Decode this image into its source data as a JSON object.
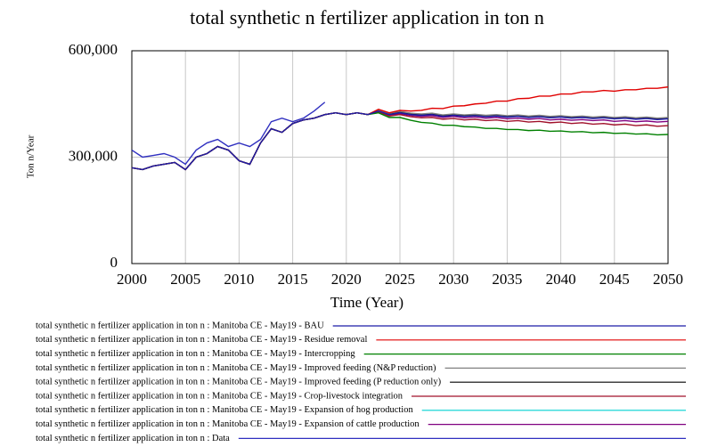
{
  "chart_data": {
    "type": "line",
    "title": "total synthetic n fertilizer application in ton n",
    "x_label": "Time (Year)",
    "y_label": "Ton n/Year",
    "x": [
      2000,
      2001,
      2002,
      2003,
      2004,
      2005,
      2006,
      2007,
      2008,
      2009,
      2010,
      2011,
      2012,
      2013,
      2014,
      2015,
      2016,
      2017,
      2018,
      2019,
      2020,
      2021,
      2022,
      2023,
      2024,
      2025,
      2026,
      2027,
      2028,
      2029,
      2030,
      2031,
      2032,
      2033,
      2034,
      2035,
      2036,
      2037,
      2038,
      2039,
      2040,
      2041,
      2042,
      2043,
      2044,
      2045,
      2046,
      2047,
      2048,
      2049,
      2050
    ],
    "xlim": [
      2000,
      2050
    ],
    "xticks": [
      2000,
      2005,
      2010,
      2015,
      2020,
      2025,
      2030,
      2035,
      2040,
      2045,
      2050
    ],
    "ylim": [
      0,
      600000
    ],
    "yticks": [
      {
        "value": 0,
        "label": "0"
      },
      {
        "value": 300000,
        "label": "300,000"
      },
      {
        "value": 600000,
        "label": "600,000"
      }
    ],
    "grid": true,
    "series": [
      {
        "name": "total synthetic n fertilizer application in ton n : Manitoba CE - May19 - BAU",
        "color": "#1c1ca8",
        "values": [
          270000,
          265000,
          275000,
          280000,
          285000,
          265000,
          300000,
          310000,
          330000,
          320000,
          290000,
          280000,
          340000,
          380000,
          370000,
          395000,
          405000,
          410000,
          420000,
          425000,
          420000,
          425000,
          420000,
          430000,
          420000,
          425000,
          420000,
          418000,
          420000,
          415000,
          418000,
          415000,
          417000,
          414000,
          416000,
          413000,
          415000,
          412000,
          414000,
          411000,
          413000,
          410000,
          412000,
          409000,
          411000,
          408000,
          410000,
          407000,
          409000,
          406000,
          408000
        ]
      },
      {
        "name": "total synthetic n fertilizer application in ton n : Manitoba CE - May19 - Residue removal",
        "color": "#e00000",
        "values": [
          270000,
          265000,
          275000,
          280000,
          285000,
          265000,
          300000,
          310000,
          330000,
          320000,
          290000,
          280000,
          340000,
          380000,
          370000,
          395000,
          405000,
          410000,
          420000,
          425000,
          420000,
          425000,
          420000,
          435000,
          425000,
          432000,
          430000,
          432000,
          438000,
          437000,
          444000,
          445000,
          450000,
          452000,
          458000,
          458000,
          465000,
          466000,
          472000,
          472000,
          478000,
          478000,
          484000,
          484000,
          488000,
          486000,
          490000,
          490000,
          494000,
          494000,
          498000
        ]
      },
      {
        "name": "total synthetic n fertilizer application in ton n : Manitoba CE - May19 - Intercropping",
        "color": "#008000",
        "values": [
          270000,
          265000,
          275000,
          280000,
          285000,
          265000,
          300000,
          310000,
          330000,
          320000,
          290000,
          280000,
          340000,
          380000,
          370000,
          395000,
          405000,
          410000,
          420000,
          425000,
          420000,
          425000,
          420000,
          425000,
          412000,
          412000,
          404000,
          398000,
          396000,
          390000,
          390000,
          386000,
          385000,
          381000,
          381000,
          378000,
          378000,
          375000,
          376000,
          373000,
          374000,
          371000,
          372000,
          369000,
          370000,
          367000,
          368000,
          365000,
          366000,
          363000,
          364000
        ]
      },
      {
        "name": "total synthetic n fertilizer application in ton n : Manitoba CE - May19 - Improved feeding (N&P reduction)",
        "color": "#808080",
        "values": [
          270000,
          265000,
          275000,
          280000,
          285000,
          265000,
          300000,
          310000,
          330000,
          320000,
          290000,
          280000,
          340000,
          380000,
          370000,
          395000,
          405000,
          410000,
          420000,
          425000,
          420000,
          425000,
          420000,
          432000,
          424000,
          429000,
          424000,
          422000,
          424000,
          419000,
          422000,
          419000,
          421000,
          418000,
          420000,
          417000,
          419000,
          416000,
          418000,
          415000,
          417000,
          414000,
          416000,
          413000,
          415000,
          412000,
          414000,
          411000,
          413000,
          410000,
          412000
        ]
      },
      {
        "name": "total synthetic n fertilizer application in ton n : Manitoba CE - May19 - Improved feeding (P reduction only)",
        "color": "#000000",
        "values": [
          270000,
          265000,
          275000,
          280000,
          285000,
          265000,
          300000,
          310000,
          330000,
          320000,
          290000,
          280000,
          340000,
          380000,
          370000,
          395000,
          405000,
          410000,
          420000,
          425000,
          420000,
          425000,
          420000,
          431000,
          422000,
          427000,
          422000,
          420000,
          422000,
          417000,
          420000,
          417000,
          419000,
          416000,
          418000,
          415000,
          417000,
          414000,
          416000,
          413000,
          415000,
          412000,
          414000,
          411000,
          413000,
          410000,
          412000,
          409000,
          411000,
          408000,
          410000
        ]
      },
      {
        "name": "total synthetic n fertilizer application in ton n : Manitoba CE - May19 - Crop-livestock integration",
        "color": "#a0102a",
        "values": [
          270000,
          265000,
          275000,
          280000,
          285000,
          265000,
          300000,
          310000,
          330000,
          320000,
          290000,
          280000,
          340000,
          380000,
          370000,
          395000,
          405000,
          410000,
          420000,
          425000,
          420000,
          425000,
          420000,
          428000,
          416000,
          420000,
          414000,
          411000,
          412000,
          407000,
          409000,
          405000,
          407000,
          403000,
          405000,
          401000,
          403000,
          399000,
          401000,
          397000,
          399000,
          395000,
          397000,
          393000,
          395000,
          391000,
          393000,
          389000,
          391000,
          387000,
          389000
        ]
      },
      {
        "name": "total synthetic n fertilizer application in ton n : Manitoba CE - May19 - Expansion of hog production",
        "color": "#00d0d0",
        "values": [
          270000,
          265000,
          275000,
          280000,
          285000,
          265000,
          300000,
          310000,
          330000,
          320000,
          290000,
          280000,
          340000,
          380000,
          370000,
          395000,
          405000,
          410000,
          420000,
          425000,
          420000,
          425000,
          420000,
          432000,
          423000,
          428000,
          423000,
          421000,
          423000,
          418000,
          421000,
          418000,
          420000,
          417000,
          419000,
          416000,
          418000,
          415000,
          417000,
          414000,
          416000,
          413000,
          415000,
          412000,
          414000,
          411000,
          413000,
          410000,
          412000,
          409000,
          411000
        ]
      },
      {
        "name": "total synthetic n fertilizer application in ton n : Manitoba CE - May19 - Expansion of cattle production",
        "color": "#800080",
        "values": [
          270000,
          265000,
          275000,
          280000,
          285000,
          265000,
          300000,
          310000,
          330000,
          320000,
          290000,
          280000,
          340000,
          380000,
          370000,
          395000,
          405000,
          410000,
          420000,
          425000,
          420000,
          425000,
          420000,
          429000,
          418000,
          423000,
          418000,
          415000,
          417000,
          412000,
          415000,
          411000,
          413000,
          410000,
          412000,
          408000,
          410000,
          407000,
          409000,
          405000,
          407000,
          404000,
          406000,
          403000,
          405000,
          401000,
          403000,
          400000,
          402000,
          399000,
          401000
        ]
      },
      {
        "name": "total synthetic n fertilizer application in ton n : Data",
        "color": "#3030c0",
        "values": [
          320000,
          300000,
          305000,
          310000,
          300000,
          280000,
          320000,
          340000,
          350000,
          330000,
          340000,
          330000,
          350000,
          400000,
          410000,
          400000,
          410000,
          430000,
          455000,
          null,
          null,
          null,
          null,
          null,
          null,
          null,
          null,
          null,
          null,
          null,
          null,
          null,
          null,
          null,
          null,
          null,
          null,
          null,
          null,
          null,
          null,
          null,
          null,
          null,
          null,
          null,
          null,
          null,
          null,
          null,
          null
        ]
      }
    ]
  }
}
